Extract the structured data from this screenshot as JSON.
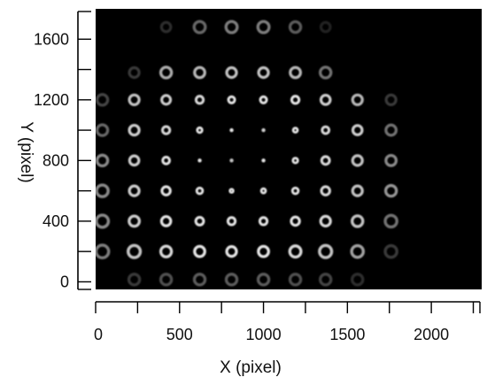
{
  "chart_data": {
    "type": "scatter",
    "title": "",
    "xlabel": "X  (pixel)",
    "ylabel": "Y  (pixel)",
    "xlim": [
      0,
      2300
    ],
    "ylim": [
      -50,
      1800
    ],
    "x_ticks": [
      "0",
      "500",
      "1000",
      "1500",
      "2000"
    ],
    "y_ticks": [
      "0",
      "400",
      "800",
      "1200",
      "1600"
    ],
    "background_color": "#000000",
    "spot_color": "#e6e6e6",
    "spots": [
      {
        "x": 420,
        "y": 1680,
        "b": 0.2,
        "s": 0.95
      },
      {
        "x": 620,
        "y": 1680,
        "b": 0.45,
        "s": 1.15
      },
      {
        "x": 810,
        "y": 1680,
        "b": 0.55,
        "s": 1.15
      },
      {
        "x": 1000,
        "y": 1680,
        "b": 0.55,
        "s": 1.15
      },
      {
        "x": 1190,
        "y": 1680,
        "b": 0.4,
        "s": 1.1
      },
      {
        "x": 1370,
        "y": 1680,
        "b": 0.15,
        "s": 0.95
      },
      {
        "x": 230,
        "y": 1380,
        "b": 0.25,
        "s": 1.0
      },
      {
        "x": 420,
        "y": 1380,
        "b": 0.75,
        "s": 1.1
      },
      {
        "x": 620,
        "y": 1380,
        "b": 0.8,
        "s": 1.05
      },
      {
        "x": 810,
        "y": 1380,
        "b": 0.85,
        "s": 1.0
      },
      {
        "x": 1000,
        "y": 1380,
        "b": 0.85,
        "s": 1.0
      },
      {
        "x": 1190,
        "y": 1380,
        "b": 0.8,
        "s": 1.05
      },
      {
        "x": 1370,
        "y": 1380,
        "b": 0.5,
        "s": 1.1
      },
      {
        "x": 40,
        "y": 1200,
        "b": 0.3,
        "s": 1.1
      },
      {
        "x": 230,
        "y": 1200,
        "b": 0.85,
        "s": 1.0
      },
      {
        "x": 420,
        "y": 1200,
        "b": 0.9,
        "s": 0.9
      },
      {
        "x": 620,
        "y": 1200,
        "b": 0.95,
        "s": 0.75
      },
      {
        "x": 810,
        "y": 1200,
        "b": 1.0,
        "s": 0.65
      },
      {
        "x": 1000,
        "y": 1200,
        "b": 1.0,
        "s": 0.65
      },
      {
        "x": 1190,
        "y": 1200,
        "b": 1.0,
        "s": 0.75
      },
      {
        "x": 1370,
        "y": 1200,
        "b": 0.9,
        "s": 0.95
      },
      {
        "x": 1560,
        "y": 1200,
        "b": 0.8,
        "s": 1.0
      },
      {
        "x": 1760,
        "y": 1200,
        "b": 0.25,
        "s": 1.0
      },
      {
        "x": 40,
        "y": 1000,
        "b": 0.45,
        "s": 1.1
      },
      {
        "x": 230,
        "y": 1000,
        "b": 0.9,
        "s": 1.0
      },
      {
        "x": 420,
        "y": 1000,
        "b": 0.95,
        "s": 0.75
      },
      {
        "x": 620,
        "y": 1000,
        "b": 1.0,
        "s": 0.5
      },
      {
        "x": 810,
        "y": 1000,
        "b": 1.0,
        "s": 0.3
      },
      {
        "x": 1000,
        "y": 1000,
        "b": 0.9,
        "s": 0.28
      },
      {
        "x": 1190,
        "y": 1000,
        "b": 1.0,
        "s": 0.45
      },
      {
        "x": 1370,
        "y": 1000,
        "b": 0.95,
        "s": 0.7
      },
      {
        "x": 1560,
        "y": 1000,
        "b": 0.9,
        "s": 0.95
      },
      {
        "x": 1760,
        "y": 1000,
        "b": 0.5,
        "s": 1.05
      },
      {
        "x": 40,
        "y": 800,
        "b": 0.6,
        "s": 1.1
      },
      {
        "x": 230,
        "y": 800,
        "b": 0.9,
        "s": 0.95
      },
      {
        "x": 420,
        "y": 800,
        "b": 1.0,
        "s": 0.7
      },
      {
        "x": 620,
        "y": 800,
        "b": 1.0,
        "s": 0.3
      },
      {
        "x": 810,
        "y": 800,
        "b": 0.85,
        "s": 0.2
      },
      {
        "x": 1000,
        "y": 800,
        "b": 1.0,
        "s": 0.25
      },
      {
        "x": 1190,
        "y": 800,
        "b": 1.0,
        "s": 0.5
      },
      {
        "x": 1370,
        "y": 800,
        "b": 0.95,
        "s": 0.8
      },
      {
        "x": 1560,
        "y": 800,
        "b": 0.85,
        "s": 1.0
      },
      {
        "x": 1760,
        "y": 800,
        "b": 0.6,
        "s": 1.05
      },
      {
        "x": 40,
        "y": 600,
        "b": 0.6,
        "s": 1.2
      },
      {
        "x": 230,
        "y": 600,
        "b": 0.9,
        "s": 1.0
      },
      {
        "x": 420,
        "y": 600,
        "b": 1.0,
        "s": 0.85
      },
      {
        "x": 620,
        "y": 600,
        "b": 1.0,
        "s": 0.6
      },
      {
        "x": 810,
        "y": 600,
        "b": 1.0,
        "s": 0.35
      },
      {
        "x": 1000,
        "y": 600,
        "b": 1.0,
        "s": 0.45
      },
      {
        "x": 1190,
        "y": 600,
        "b": 1.0,
        "s": 0.6
      },
      {
        "x": 1370,
        "y": 600,
        "b": 0.95,
        "s": 0.85
      },
      {
        "x": 1560,
        "y": 600,
        "b": 0.85,
        "s": 1.0
      },
      {
        "x": 1760,
        "y": 600,
        "b": 0.65,
        "s": 1.1
      },
      {
        "x": 40,
        "y": 400,
        "b": 0.6,
        "s": 1.25
      },
      {
        "x": 230,
        "y": 400,
        "b": 0.9,
        "s": 1.05
      },
      {
        "x": 420,
        "y": 400,
        "b": 1.0,
        "s": 0.95
      },
      {
        "x": 620,
        "y": 400,
        "b": 1.0,
        "s": 0.8
      },
      {
        "x": 810,
        "y": 400,
        "b": 1.0,
        "s": 0.75
      },
      {
        "x": 1000,
        "y": 400,
        "b": 1.0,
        "s": 0.75
      },
      {
        "x": 1190,
        "y": 400,
        "b": 1.0,
        "s": 0.85
      },
      {
        "x": 1370,
        "y": 400,
        "b": 0.95,
        "s": 1.0
      },
      {
        "x": 1560,
        "y": 400,
        "b": 0.85,
        "s": 1.1
      },
      {
        "x": 1760,
        "y": 400,
        "b": 0.5,
        "s": 1.2
      },
      {
        "x": 40,
        "y": 200,
        "b": 0.55,
        "s": 1.3
      },
      {
        "x": 230,
        "y": 200,
        "b": 0.85,
        "s": 1.25
      },
      {
        "x": 420,
        "y": 200,
        "b": 0.95,
        "s": 1.1
      },
      {
        "x": 620,
        "y": 200,
        "b": 1.0,
        "s": 1.05
      },
      {
        "x": 810,
        "y": 200,
        "b": 1.0,
        "s": 1.0
      },
      {
        "x": 1000,
        "y": 200,
        "b": 1.0,
        "s": 1.05
      },
      {
        "x": 1190,
        "y": 200,
        "b": 0.95,
        "s": 1.15
      },
      {
        "x": 1370,
        "y": 200,
        "b": 0.85,
        "s": 1.25
      },
      {
        "x": 1560,
        "y": 200,
        "b": 0.7,
        "s": 1.2
      },
      {
        "x": 1760,
        "y": 200,
        "b": 0.25,
        "s": 1.2
      },
      {
        "x": 230,
        "y": 15,
        "b": 0.25,
        "s": 1.1
      },
      {
        "x": 420,
        "y": 15,
        "b": 0.35,
        "s": 1.1
      },
      {
        "x": 620,
        "y": 15,
        "b": 0.4,
        "s": 1.1
      },
      {
        "x": 810,
        "y": 15,
        "b": 0.4,
        "s": 1.1
      },
      {
        "x": 1000,
        "y": 15,
        "b": 0.4,
        "s": 1.1
      },
      {
        "x": 1190,
        "y": 15,
        "b": 0.35,
        "s": 1.1
      },
      {
        "x": 1370,
        "y": 15,
        "b": 0.3,
        "s": 1.1
      },
      {
        "x": 1560,
        "y": 15,
        "b": 0.2,
        "s": 1.1
      }
    ]
  }
}
